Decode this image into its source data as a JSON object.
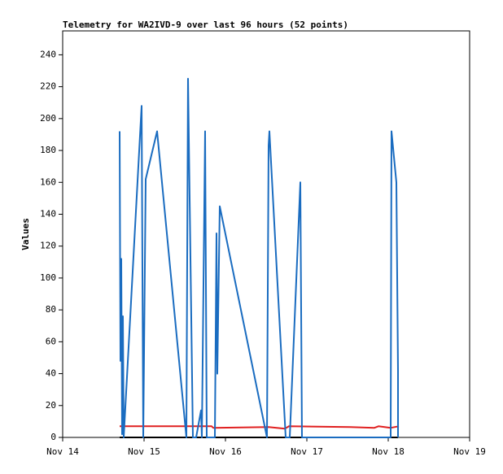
{
  "chart_data": {
    "type": "line",
    "title": "Telemetry for WA2IVD-9 over last 96 hours (52 points)",
    "y_label": "Values",
    "xlim": [
      14,
      19
    ],
    "xticks": [
      {
        "value": 14,
        "label": "Nov 14"
      },
      {
        "value": 15,
        "label": "Nov 15"
      },
      {
        "value": 16,
        "label": "Nov 16"
      },
      {
        "value": 17,
        "label": "Nov 17"
      },
      {
        "value": 18,
        "label": "Nov 18"
      },
      {
        "value": 19,
        "label": "Nov 19"
      }
    ],
    "ylim": [
      0,
      255
    ],
    "yticks": [
      0,
      20,
      40,
      60,
      80,
      100,
      120,
      140,
      160,
      180,
      200,
      220,
      240
    ],
    "grid": false,
    "series": [
      {
        "color": "#1a6cc0",
        "x": [
          14.7,
          14.71,
          14.72,
          14.73,
          14.74,
          14.75,
          14.97,
          14.99,
          15.02,
          15.16,
          15.52,
          15.54,
          15.6,
          15.64,
          15.7,
          15.71,
          15.75,
          15.77,
          15.87,
          15.89,
          15.9,
          15.93,
          16.51,
          16.53,
          16.54,
          16.74,
          16.79,
          16.92,
          16.94,
          18.03,
          18.04,
          18.1,
          18.12,
          18.12
        ],
        "values": [
          192,
          48,
          112,
          2,
          76,
          0,
          208,
          0,
          162,
          192,
          0,
          225,
          0,
          0,
          17,
          0,
          192,
          0,
          0,
          128,
          40,
          145,
          0,
          183,
          192,
          0,
          0,
          160,
          0,
          0,
          192,
          160,
          42,
          0
        ]
      },
      {
        "color": "#e02020",
        "x": [
          14.7,
          15.83,
          15.85,
          16.53,
          16.73,
          16.78,
          17.53,
          17.83,
          17.88,
          18.03,
          18.13
        ],
        "values": [
          7,
          7,
          6,
          6.5,
          5.5,
          7,
          6.5,
          6,
          7,
          6,
          7
        ]
      },
      {
        "color": "#000000",
        "x": [
          14.7,
          18.12
        ],
        "values": [
          0,
          0
        ]
      }
    ]
  }
}
